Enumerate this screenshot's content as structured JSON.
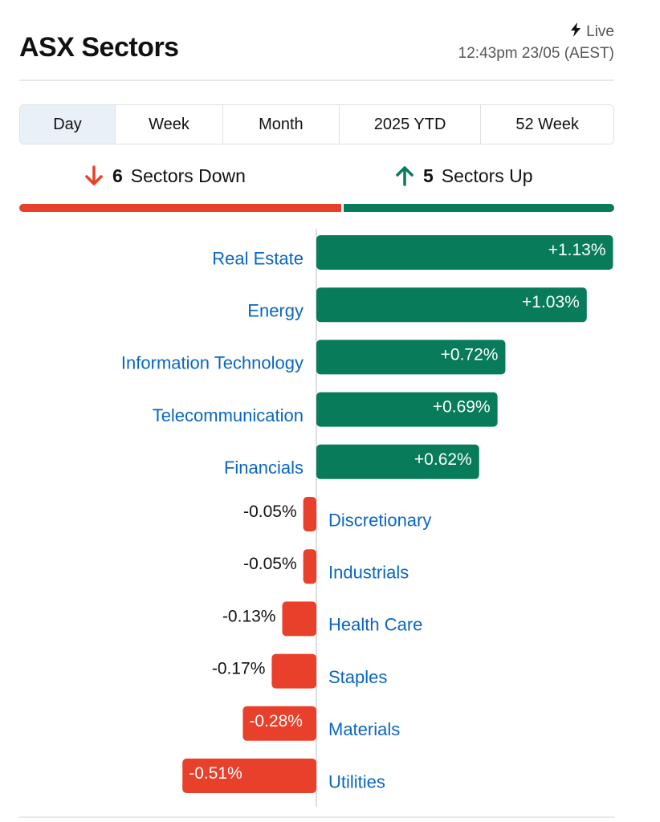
{
  "header": {
    "title": "ASX Sectors",
    "live_label": "Live",
    "timestamp": "12:43pm 23/05 (AEST)"
  },
  "tabs": [
    {
      "label": "Day",
      "active": true
    },
    {
      "label": "Week",
      "active": false
    },
    {
      "label": "Month",
      "active": false
    },
    {
      "label": "2025 YTD",
      "active": false
    },
    {
      "label": "52 Week",
      "active": false
    }
  ],
  "summary": {
    "down_count": "6",
    "down_label": "Sectors Down",
    "up_count": "5",
    "up_label": "Sectors Up",
    "down_color": "#e8402a",
    "up_color": "#077b5a"
  },
  "chart_data": {
    "type": "bar",
    "orientation": "horizontal",
    "categories": [
      "Real Estate",
      "Energy",
      "Information Technology",
      "Telecommunication",
      "Financials",
      "Discretionary",
      "Industrials",
      "Health Care",
      "Staples",
      "Materials",
      "Utilities"
    ],
    "values": [
      1.13,
      1.03,
      0.72,
      0.69,
      0.62,
      -0.05,
      -0.05,
      -0.13,
      -0.17,
      -0.28,
      -0.51
    ],
    "labels": [
      "+1.13%",
      "+1.03%",
      "+0.72%",
      "+0.69%",
      "+0.62%",
      "-0.05%",
      "-0.05%",
      "-0.13%",
      "-0.17%",
      "-0.28%",
      "-0.51%"
    ],
    "positive_color": "#077b5a",
    "negative_color": "#e8402a",
    "category_color": "#0a66c2",
    "xlim": [
      -0.51,
      1.13
    ],
    "grid": false
  }
}
